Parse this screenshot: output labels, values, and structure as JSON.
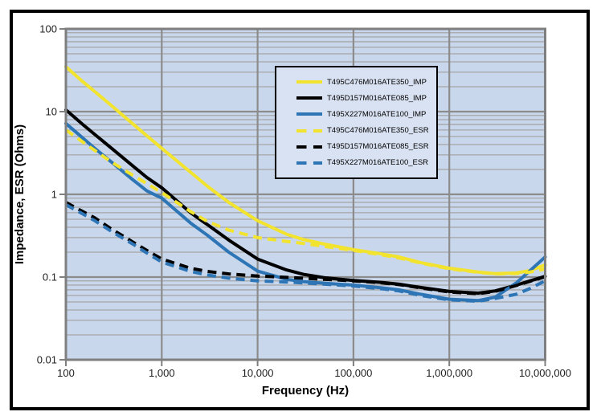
{
  "page": {
    "background": "#ffffff",
    "frame_border_color": "#000000"
  },
  "chart_data": {
    "type": "line",
    "title": "",
    "xlabel": "Frequency (Hz)",
    "ylabel": "Impedance, ESR (Ohms)",
    "x_scale": "log",
    "y_scale": "log",
    "xlim": [
      100,
      10000000
    ],
    "ylim": [
      0.01,
      100
    ],
    "grid": "on",
    "legend_position": "inside-top-right",
    "x_tick_values": [
      100,
      1000,
      10000,
      100000,
      1000000,
      10000000
    ],
    "x_tick_labels": [
      "100",
      "1,000",
      "10,000",
      "100,000",
      "1,000,000",
      "10,000,000"
    ],
    "y_tick_values": [
      100,
      10,
      1,
      0.1,
      0.01
    ],
    "y_tick_labels": [
      "100",
      "10",
      "1",
      "0.1",
      "0.01"
    ],
    "colors": {
      "plot_bg": "#c9d7ed",
      "grid_minor": "#a6a6a6",
      "grid_major": "#8c8c8c",
      "plot_border": "#7f7f7f",
      "series_yellow": "#f2e42e",
      "series_black": "#000000",
      "series_blue": "#2e75b6"
    },
    "x": [
      100,
      150,
      200,
      300,
      500,
      700,
      1000,
      2000,
      3000,
      5000,
      10000,
      20000,
      30000,
      50000,
      100000,
      200000,
      300000,
      500000,
      1000000,
      2000000,
      3000000,
      5000000,
      7000000,
      10000000
    ],
    "series": [
      {
        "name": "T495C476M016ATE350_IMP",
        "color": "#f2e42e",
        "style": "solid",
        "values": [
          35,
          23,
          17.5,
          11.8,
          7.1,
          5.1,
          3.6,
          1.85,
          1.25,
          0.8,
          0.48,
          0.33,
          0.285,
          0.25,
          0.215,
          0.19,
          0.175,
          0.15,
          0.128,
          0.115,
          0.11,
          0.112,
          0.12,
          0.14
        ]
      },
      {
        "name": "T495D157M016ATE085_IMP",
        "color": "#000000",
        "style": "solid",
        "values": [
          10.5,
          7.0,
          5.3,
          3.6,
          2.2,
          1.6,
          1.2,
          0.6,
          0.43,
          0.28,
          0.165,
          0.122,
          0.108,
          0.098,
          0.091,
          0.086,
          0.082,
          0.075,
          0.067,
          0.064,
          0.068,
          0.08,
          0.09,
          0.102
        ]
      },
      {
        "name": "T495X227M016ATE100_IMP",
        "color": "#2e75b6",
        "style": "solid",
        "values": [
          7.2,
          4.8,
          3.6,
          2.45,
          1.5,
          1.1,
          0.9,
          0.45,
          0.32,
          0.2,
          0.118,
          0.094,
          0.088,
          0.084,
          0.08,
          0.074,
          0.07,
          0.062,
          0.054,
          0.052,
          0.057,
          0.085,
          0.12,
          0.175
        ]
      },
      {
        "name": "T495C476M016ATE350_ESR",
        "color": "#f2e42e",
        "style": "dashed",
        "values": [
          6.0,
          4.3,
          3.4,
          2.45,
          1.7,
          1.35,
          1.05,
          0.62,
          0.47,
          0.37,
          0.3,
          0.27,
          0.255,
          0.235,
          0.21,
          0.185,
          0.17,
          0.148,
          0.126,
          0.114,
          0.109,
          0.11,
          0.115,
          0.125
        ]
      },
      {
        "name": "T495D157M016ATE085_ESR",
        "color": "#000000",
        "style": "dashed",
        "values": [
          0.8,
          0.62,
          0.52,
          0.38,
          0.265,
          0.21,
          0.165,
          0.128,
          0.117,
          0.109,
          0.103,
          0.099,
          0.097,
          0.094,
          0.09,
          0.085,
          0.081,
          0.074,
          0.066,
          0.063,
          0.067,
          0.079,
          0.089,
          0.101
        ]
      },
      {
        "name": "T495X227M016ATE100_ESR",
        "color": "#2e75b6",
        "style": "dashed",
        "values": [
          0.75,
          0.58,
          0.48,
          0.355,
          0.25,
          0.195,
          0.152,
          0.117,
          0.106,
          0.097,
          0.09,
          0.087,
          0.085,
          0.082,
          0.078,
          0.072,
          0.068,
          0.06,
          0.053,
          0.051,
          0.055,
          0.062,
          0.073,
          0.09
        ]
      }
    ]
  },
  "legend": {
    "background": "#d9e2f2",
    "border_color": "#000000"
  }
}
